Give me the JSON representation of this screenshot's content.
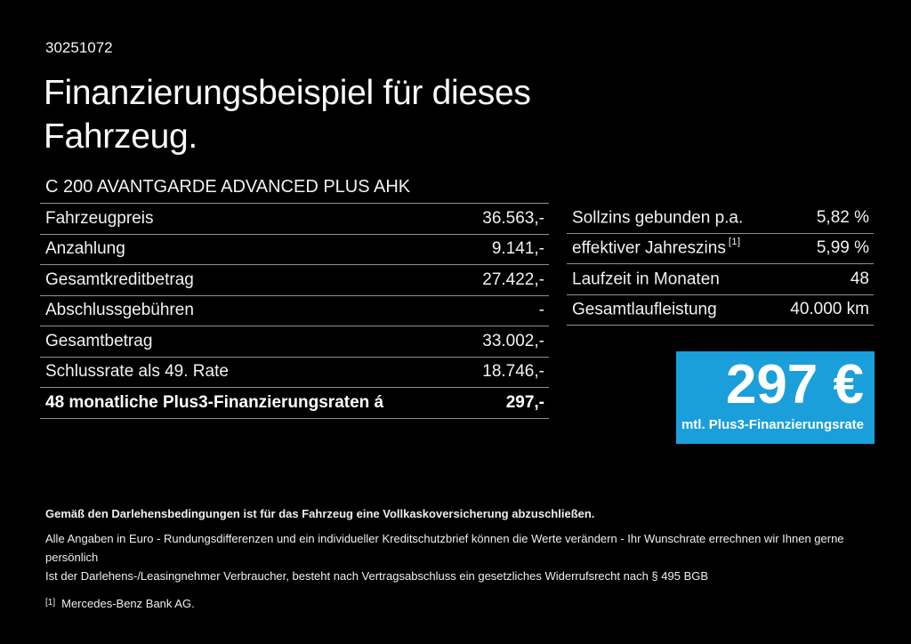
{
  "page": {
    "id_number": "30251072",
    "title": "Finanzierungsbeispiel für dieses\nFahrzeug.",
    "subtitle": "C 200 AVANTGARDE ADVANCED PLUS AHK"
  },
  "colors": {
    "background": "#000000",
    "text": "#f2f2f2",
    "divider": "#909090",
    "accent_blue": "#1A9FDB"
  },
  "finance_table": {
    "rows": [
      {
        "label": "Fahrzeugpreis",
        "value": "36.563,-"
      },
      {
        "label": "Anzahlung",
        "value": "9.141,-"
      },
      {
        "label": "Gesamtkreditbetrag",
        "value": "27.422,-"
      },
      {
        "label": "Abschlussgebühren",
        "value": "-"
      },
      {
        "label": "Gesamtbetrag",
        "value": "33.002,-"
      },
      {
        "label": "Schlussrate als 49. Rate",
        "value": "18.746,-"
      },
      {
        "label": "48 monatliche Plus3-Finanzierungsraten á",
        "value": "297,-"
      }
    ]
  },
  "conditions_table": {
    "rows": [
      {
        "label": "Sollzins gebunden p.a.",
        "sup": "",
        "value": "5,82 %"
      },
      {
        "label": "effektiver Jahreszins",
        "sup": "[1]",
        "value": "5,99 %"
      },
      {
        "label": "Laufzeit in Monaten",
        "sup": "",
        "value": "48"
      },
      {
        "label": "Gesamtlaufleistung",
        "sup": "",
        "value": "40.000 km"
      }
    ]
  },
  "rate_box": {
    "amount": "297 €",
    "label": "mtl. Plus3-Finanzierungsrate"
  },
  "footer": {
    "line1": "Gemäß den Darlehensbedingungen ist für das Fahrzeug eine Vollkaskoversicherung abzuschließen.",
    "line2": "Alle Angaben in Euro - Rundungsdifferenzen und ein individueller Kreditschutzbrief können die Werte verändern - Ihr Wunschrate errechnen wir Ihnen gerne persönlich",
    "line3": "Ist der Darlehens-/Leasingnehmer Verbraucher, besteht nach Vertragsabschluss ein gesetzliches Widerrufsrecht nach § 495 BGB",
    "footnote_marker": "[1]",
    "footnote_text": "Mercedes-Benz Bank AG."
  }
}
